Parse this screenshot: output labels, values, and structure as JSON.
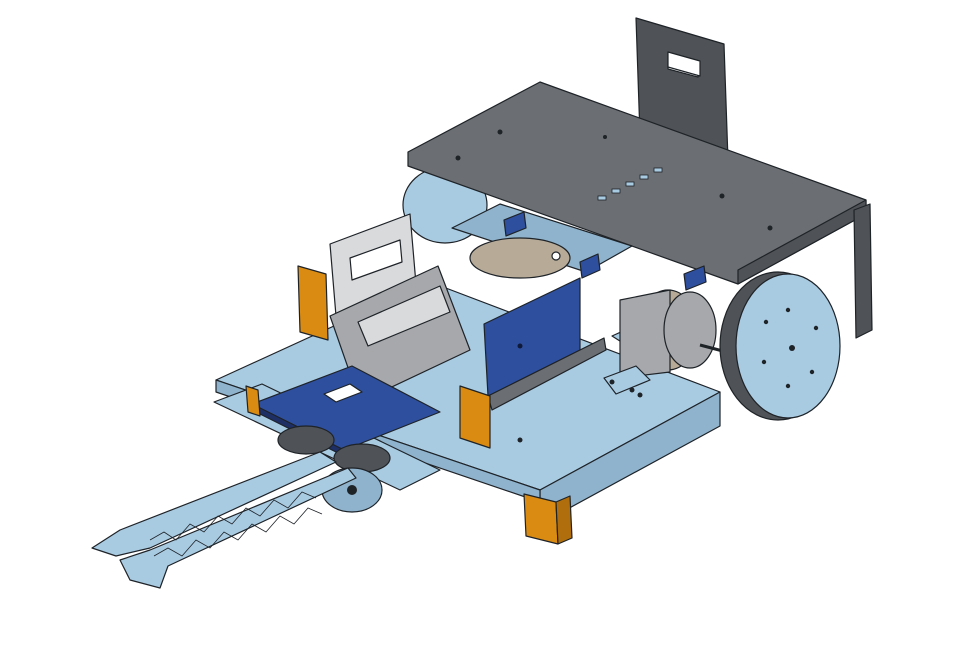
{
  "scene": {
    "background": "#ffffff",
    "colors": {
      "light_blue": "#a9cbe2",
      "light_blue_dark": "#8fb3cc",
      "dark_gray": "#6b6e72",
      "dark_gray_side": "#4f5256",
      "mid_gray": "#a6a8ab",
      "light_gray": "#d9dadc",
      "royal_blue": "#2e4f9e",
      "orange": "#d98b12",
      "tan": "#b7ab98",
      "edge": "#1e2328"
    },
    "parts": [
      "top-plate",
      "rear-bracket",
      "chassis-base",
      "left-wheel",
      "right-wheel",
      "motor",
      "gripper-arm",
      "servo-mount",
      "orange-corner-blocks"
    ]
  }
}
